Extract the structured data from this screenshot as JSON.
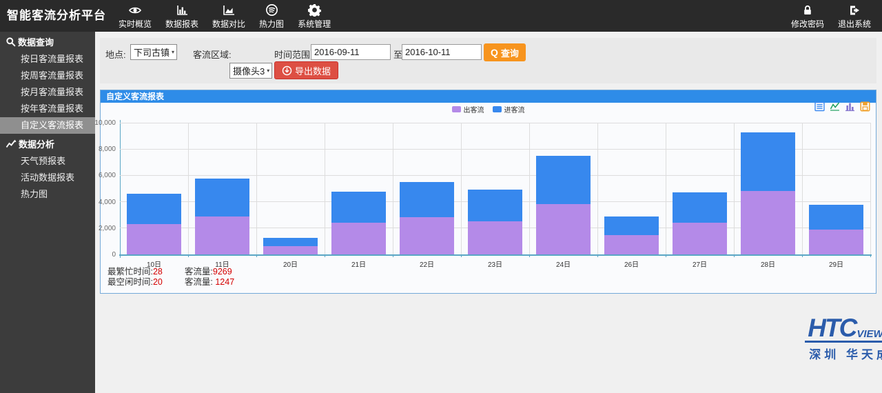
{
  "navbar": {
    "title": "智能客流分析平台",
    "menu": [
      {
        "label": "实时概览",
        "icon": "eye-icon"
      },
      {
        "label": "数据报表",
        "icon": "bar-chart-icon"
      },
      {
        "label": "数据对比",
        "icon": "area-chart-icon"
      },
      {
        "label": "热力图",
        "icon": "heatmap-icon"
      },
      {
        "label": "系统管理",
        "icon": "gear-icon"
      }
    ],
    "right_menu": [
      {
        "label": "修改密码",
        "icon": "lock-icon"
      },
      {
        "label": "退出系统",
        "icon": "logout-icon"
      }
    ]
  },
  "sidebar": {
    "sections": [
      {
        "header": "数据查询",
        "icon": "search-icon",
        "active_index": 4,
        "items": [
          "按日客流量报表",
          "按周客流量报表",
          "按月客流量报表",
          "按年客流量报表",
          "自定义客流报表"
        ]
      },
      {
        "header": "数据分析",
        "icon": "line-chart-icon",
        "active_index": -1,
        "items": [
          "天气预报表",
          "活动数据报表",
          "热力图"
        ]
      }
    ]
  },
  "filters": {
    "location_label": "地点:",
    "location_value": "下司古镇",
    "region_label": "客流区域:",
    "region_value": "摄像头3",
    "date_range_label": "时间范围",
    "date_from": "2016-09-11",
    "to_label": "至",
    "date_to": "2016-10-11",
    "query_label": "查询",
    "export_label": "导出数据"
  },
  "panel": {
    "title": "自定义客流报表",
    "toolbox": [
      {
        "name": "data-view-icon",
        "color": "#3d8af0"
      },
      {
        "name": "restore-line-chart-icon",
        "color": "#1fa05e"
      },
      {
        "name": "bar-chart-type-icon",
        "color": "#8677cf"
      },
      {
        "name": "save-image-icon",
        "color": "#f0a02a"
      }
    ]
  },
  "chart_data": {
    "type": "bar",
    "stacked": true,
    "title": "自定义客流报表",
    "categories": [
      "10日",
      "11日",
      "20日",
      "21日",
      "22日",
      "23日",
      "24日",
      "26日",
      "27日",
      "28日",
      "29日"
    ],
    "series": [
      {
        "name": "出客流",
        "color": "#b48ae8",
        "values": [
          2300,
          2900,
          610,
          2400,
          2850,
          2500,
          3800,
          1450,
          2400,
          4800,
          1900
        ]
      },
      {
        "name": "进客流",
        "color": "#3788ee",
        "values": [
          2300,
          2870,
          637,
          2350,
          2650,
          2400,
          3700,
          1450,
          2300,
          4469,
          1850
        ]
      }
    ],
    "totals": [
      4600,
      5770,
      1247,
      4750,
      5500,
      4900,
      7500,
      2900,
      4700,
      9269,
      3750
    ],
    "xlabel": "",
    "ylabel": "",
    "ylim": [
      0,
      10000
    ],
    "ytick_interval": 2000,
    "ytick_labels": [
      "0",
      "2,000",
      "4,000",
      "6,000",
      "8,000",
      "10,000"
    ],
    "grid": true,
    "legend_position": "top-center"
  },
  "stats": {
    "busiest_label": "最繁忙时间:",
    "busiest_value": "28",
    "busiest_flow_label": "客流量:",
    "busiest_flow_value": "9269",
    "idle_label": "最空闲时间:",
    "idle_value": "20",
    "idle_flow_label": "客流量:",
    "idle_flow_value": " 1247"
  },
  "logo": {
    "brand": "HTC",
    "brand_suffix": "VIEW",
    "subtitle": "深圳 华天成"
  }
}
